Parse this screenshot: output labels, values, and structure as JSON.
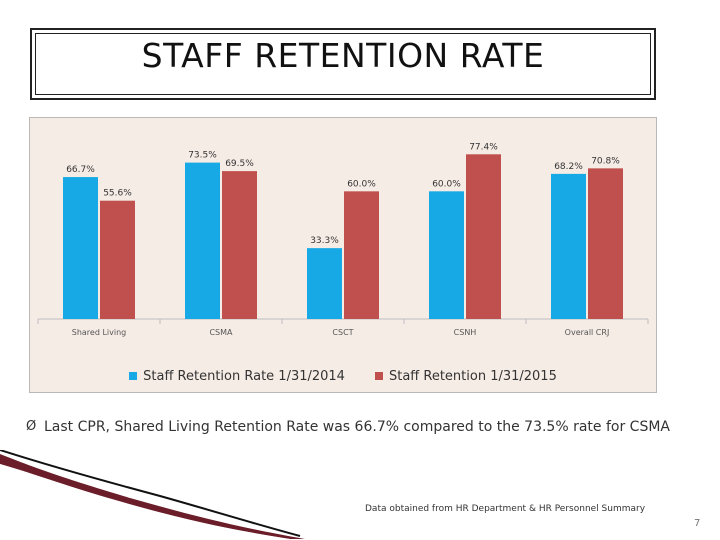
{
  "slide": {
    "title": "STAFF RETENTION RATE",
    "bullet_mark": "Ø",
    "bullet": "Last CPR, Shared Living Retention Rate was 66.7% compared to the 73.5% rate for CSMA",
    "source": "Data obtained from HR Department & HR Personnel Summary",
    "page_number": "7"
  },
  "colors": {
    "series1": "#17a9e6",
    "series2": "#c0504d",
    "background": "#f6ece6"
  },
  "chart_data": {
    "type": "bar",
    "categories": [
      "Shared Living",
      "CSMA",
      "CSCT",
      "CSNH",
      "Overall   CRJ"
    ],
    "series": [
      {
        "name": "Staff Retention Rate 1/31/2014",
        "values": [
          66.7,
          73.5,
          33.3,
          60.0,
          68.2
        ],
        "labels": [
          "66.7%",
          "73.5%",
          "33.3%",
          "60.0%",
          "68.2%"
        ]
      },
      {
        "name": "Staff Retention 1/31/2015",
        "values": [
          55.6,
          69.5,
          60.0,
          77.4,
          70.8
        ],
        "labels": [
          "55.6%",
          "69.5%",
          "60.0%",
          "77.4%",
          "70.8%"
        ]
      }
    ],
    "ylim": [
      0,
      86
    ],
    "legend": "bottom",
    "grid": false
  }
}
